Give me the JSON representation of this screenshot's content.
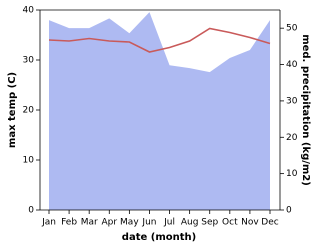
{
  "chart_data": {
    "type": "line",
    "x_label": "date (month)",
    "y_label": "max temp (C)",
    "y2_label": "med. precipitation (kg/m2)",
    "categories": [
      "Jan",
      "Feb",
      "Mar",
      "Apr",
      "May",
      "Jun",
      "Jul",
      "Aug",
      "Sep",
      "Oct",
      "Nov",
      "Dec"
    ],
    "series": [
      {
        "name": "med. precipitation",
        "type": "area",
        "axis": "y2",
        "color": "#aebaf2",
        "values": [
          52.2,
          50,
          50,
          52.7,
          48.6,
          54.4,
          39.8,
          39,
          37.9,
          41.8,
          44,
          52.2
        ]
      },
      {
        "name": "max temp",
        "type": "line",
        "color": "#c95a5a",
        "values": [
          34,
          33.8,
          34.3,
          33.8,
          33.6,
          31.6,
          32.5,
          33.8,
          36.3,
          35.5,
          34.5,
          33.3
        ]
      }
    ],
    "ylim": [
      0,
      40
    ],
    "yticks": [
      0,
      10,
      20,
      30,
      40
    ],
    "y2lim": [
      0,
      55
    ],
    "y2ticks": [
      0,
      10,
      20,
      30,
      40,
      50
    ]
  }
}
